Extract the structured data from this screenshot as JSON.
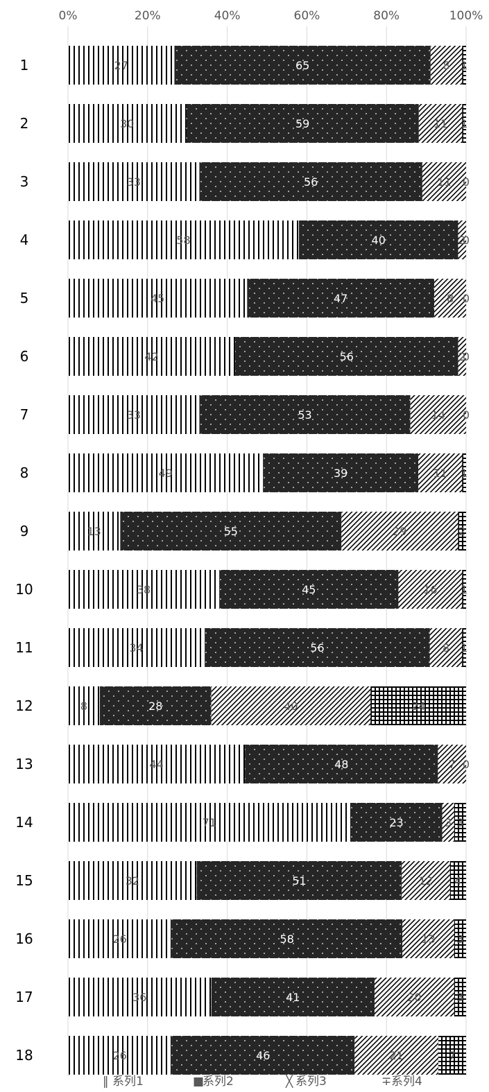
{
  "chart_data": {
    "type": "bar",
    "orientation": "horizontal",
    "stacked": "percent",
    "categories": [
      "1",
      "2",
      "3",
      "4",
      "5",
      "6",
      "7",
      "8",
      "9",
      "10",
      "11",
      "12",
      "13",
      "14",
      "15",
      "16",
      "17",
      "18"
    ],
    "series": [
      {
        "name": "系列1",
        "pattern": "vertical-lines",
        "color": "#000000",
        "values": [
          27,
          30,
          33,
          58,
          45,
          42,
          33,
          49,
          13,
          38,
          34,
          8,
          44,
          71,
          32,
          26,
          36,
          26
        ]
      },
      {
        "name": "系列2",
        "pattern": "dots-on-dark",
        "color": "#262626",
        "values": [
          65,
          59,
          56,
          40,
          47,
          56,
          53,
          39,
          55,
          45,
          56,
          28,
          48,
          23,
          51,
          58,
          41,
          46
        ]
      },
      {
        "name": "系列3",
        "pattern": "diagonal-hatch",
        "color": "#000000",
        "values": [
          8,
          11,
          11,
          2,
          8,
          2,
          14,
          11,
          29,
          16,
          8,
          40,
          7,
          3,
          12,
          13,
          20,
          21
        ]
      },
      {
        "name": "系列4",
        "pattern": "grid",
        "color": "#000000",
        "values": [
          1,
          1,
          0,
          0,
          0,
          0,
          0,
          1,
          2,
          1,
          1,
          24,
          0,
          3,
          4,
          3,
          3,
          7
        ]
      }
    ],
    "xlim": [
      0,
      100
    ],
    "x_ticks": [
      "0%",
      "20%",
      "40%",
      "60%",
      "80%",
      "100%"
    ],
    "x_tick_position": "top",
    "grid": true,
    "legend_position": "bottom"
  }
}
